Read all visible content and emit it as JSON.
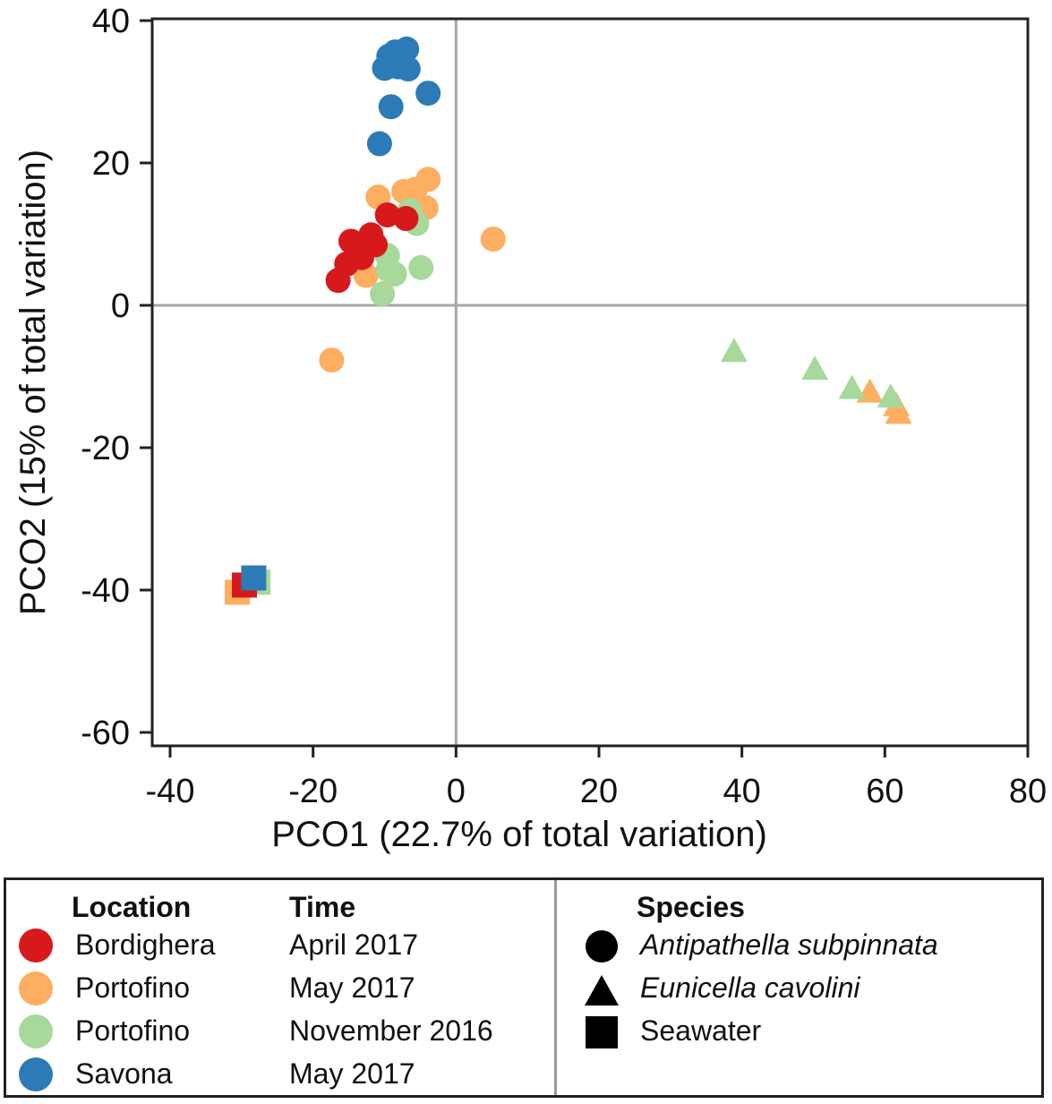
{
  "chart_data": {
    "type": "scatter",
    "xlabel": "PCO1 (22.7% of total variation)",
    "ylabel": "PCO2 (15% of total variation)",
    "xlim": [
      -42,
      80
    ],
    "ylim": [
      -62,
      40
    ],
    "xticks": [
      -40,
      -20,
      0,
      20,
      40,
      60,
      80
    ],
    "yticks": [
      -60,
      -40,
      -20,
      0,
      20,
      40
    ],
    "reference_lines": {
      "x": 0,
      "y": 0
    },
    "series": [
      {
        "name": "Bordighera April 2017",
        "color": "#d7191c",
        "points": [
          {
            "x": -15.3,
            "y": 5.8,
            "shape": "circle"
          },
          {
            "x": -14.7,
            "y": 9.0,
            "shape": "circle"
          },
          {
            "x": -13.2,
            "y": 6.7,
            "shape": "circle"
          },
          {
            "x": -11.9,
            "y": 9.9,
            "shape": "circle"
          },
          {
            "x": -16.5,
            "y": 3.5,
            "shape": "circle"
          },
          {
            "x": -11.3,
            "y": 8.5,
            "shape": "circle"
          },
          {
            "x": -9.6,
            "y": 12.7,
            "shape": "circle"
          },
          {
            "x": -7.0,
            "y": 12.2,
            "shape": "circle"
          },
          {
            "x": -29.6,
            "y": -39.3,
            "shape": "square"
          }
        ]
      },
      {
        "name": "Portofino November 2016",
        "color": "#a6d99a",
        "points": [
          {
            "x": -9.6,
            "y": 7.0,
            "shape": "circle"
          },
          {
            "x": -9.5,
            "y": 5.0,
            "shape": "circle"
          },
          {
            "x": -10.3,
            "y": 1.6,
            "shape": "circle"
          },
          {
            "x": -8.6,
            "y": 4.4,
            "shape": "circle"
          },
          {
            "x": -4.9,
            "y": 5.3,
            "shape": "circle"
          },
          {
            "x": -5.5,
            "y": 11.5,
            "shape": "circle"
          },
          {
            "x": -6.5,
            "y": 13.3,
            "shape": "circle"
          },
          {
            "x": 38.9,
            "y": -6.6,
            "shape": "triangle"
          },
          {
            "x": 50.2,
            "y": -9.1,
            "shape": "triangle"
          },
          {
            "x": 55.4,
            "y": -11.8,
            "shape": "triangle"
          },
          {
            "x": 60.8,
            "y": -13.0,
            "shape": "triangle"
          },
          {
            "x": -27.7,
            "y": -38.9,
            "shape": "square"
          }
        ]
      },
      {
        "name": "Portofino May 2017",
        "color": "#fdae61",
        "points": [
          {
            "x": -10.9,
            "y": 15.2,
            "shape": "circle"
          },
          {
            "x": -7.3,
            "y": 16.0,
            "shape": "circle"
          },
          {
            "x": -5.7,
            "y": 16.3,
            "shape": "circle"
          },
          {
            "x": -3.9,
            "y": 17.7,
            "shape": "circle"
          },
          {
            "x": -4.2,
            "y": 13.7,
            "shape": "circle"
          },
          {
            "x": -12.6,
            "y": 4.2,
            "shape": "circle"
          },
          {
            "x": 5.2,
            "y": 9.3,
            "shape": "circle"
          },
          {
            "x": -17.4,
            "y": -7.7,
            "shape": "circle"
          },
          {
            "x": 57.9,
            "y": -12.3,
            "shape": "triangle"
          },
          {
            "x": 61.6,
            "y": -14.2,
            "shape": "triangle"
          },
          {
            "x": 61.9,
            "y": -15.3,
            "shape": "triangle"
          },
          {
            "x": -30.6,
            "y": -40.3,
            "shape": "square"
          }
        ]
      },
      {
        "name": "Savona May 2017",
        "color": "#2c7bb6",
        "points": [
          {
            "x": -9.4,
            "y": 35.0,
            "shape": "circle"
          },
          {
            "x": -8.5,
            "y": 35.6,
            "shape": "circle"
          },
          {
            "x": -6.9,
            "y": 36.0,
            "shape": "circle"
          },
          {
            "x": -7.5,
            "y": 34.2,
            "shape": "circle"
          },
          {
            "x": -6.7,
            "y": 33.2,
            "shape": "circle"
          },
          {
            "x": -8.1,
            "y": 33.5,
            "shape": "circle"
          },
          {
            "x": -10.0,
            "y": 33.3,
            "shape": "circle"
          },
          {
            "x": -3.9,
            "y": 29.8,
            "shape": "circle"
          },
          {
            "x": -9.1,
            "y": 27.9,
            "shape": "circle"
          },
          {
            "x": -10.7,
            "y": 22.7,
            "shape": "circle"
          },
          {
            "x": -28.3,
            "y": -38.3,
            "shape": "square"
          }
        ]
      }
    ]
  },
  "legend": {
    "location_header": "Location",
    "time_header": "Time",
    "species_header": "Species",
    "entries": [
      {
        "location": "Bordighera",
        "time": "April 2017",
        "color": "#d7191c"
      },
      {
        "location": "Portofino",
        "time": "May 2017",
        "color": "#fdae61"
      },
      {
        "location": "Portofino",
        "time": "November 2016",
        "color": "#a6d99a"
      },
      {
        "location": "Savona",
        "time": "May 2017",
        "color": "#2c7bb6"
      }
    ],
    "species": [
      {
        "label": "Antipathella subpinnata",
        "shape": "circle"
      },
      {
        "label": "Eunicella cavolini",
        "shape": "triangle"
      },
      {
        "label": "Seawater",
        "shape": "square"
      }
    ]
  }
}
